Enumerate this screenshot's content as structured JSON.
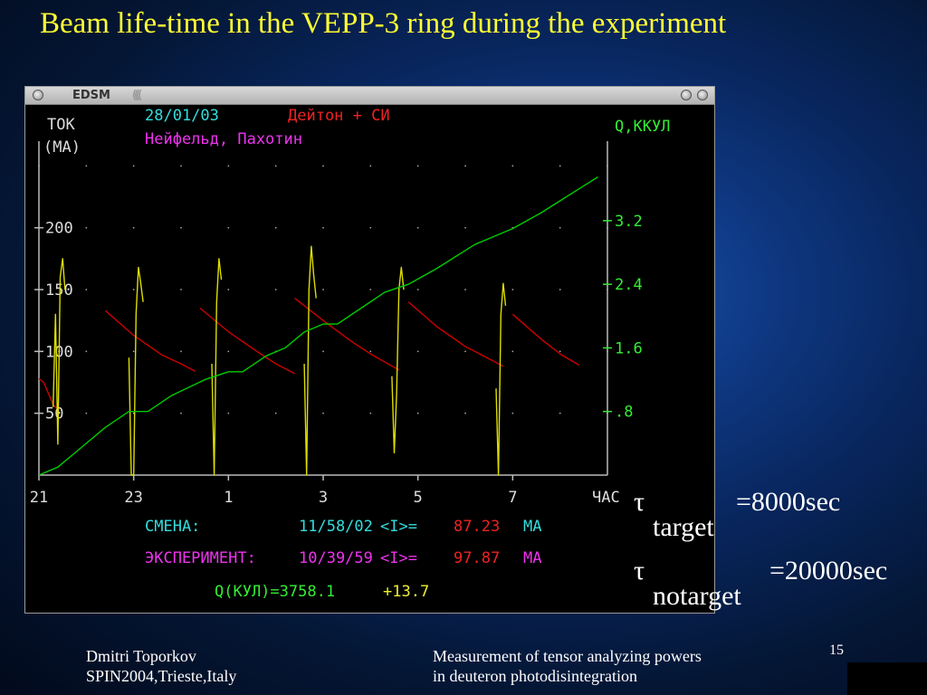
{
  "slide": {
    "title": "Beam life-time in the VEPP-3 ring during the experiment",
    "page_number": "15",
    "footer_left": [
      "Dmitri Toporkov",
      "SPIN2004,Trieste,Italy"
    ],
    "footer_right": [
      "Measurement of tensor analyzing powers",
      "in deuteron photodisintegration"
    ]
  },
  "window": {
    "title": "EDSM"
  },
  "formulas": [
    {
      "symbol": "τ",
      "subscript": "target",
      "value": "=8000sec"
    },
    {
      "symbol": "τ",
      "subscript": "notarget",
      "value": "=20000sec"
    }
  ],
  "chart_data": {
    "type": "line",
    "header": {
      "date": "28/01/03",
      "beam": "Дейтон + СИ",
      "operators": "Нейфельд, Пахотин"
    },
    "left_axis": {
      "label_line1": "ТОК",
      "label_line2": "(МА)",
      "ticks": [
        "50",
        "100",
        "150",
        "200"
      ],
      "tick_values": [
        50,
        100,
        150,
        200
      ],
      "range": [
        0,
        270
      ]
    },
    "right_axis": {
      "label": "Q,ККУЛ",
      "ticks": [
        ".8",
        "1.6",
        "2.4",
        "3.2"
      ],
      "tick_values": [
        0.8,
        1.6,
        2.4,
        3.2
      ],
      "range": [
        0,
        4.2
      ]
    },
    "x_axis": {
      "label": "ЧАС",
      "ticks": [
        "21",
        "23",
        "1",
        "3",
        "5",
        "7"
      ],
      "tick_positions": [
        21,
        23,
        25,
        27,
        29,
        31
      ],
      "range": [
        21,
        33
      ]
    },
    "grid": "dotted",
    "series": [
      {
        "color": "#cc0000",
        "axis": "left",
        "segments": [
          [
            [
              21.0,
              78
            ],
            [
              21.1,
              75
            ],
            [
              21.2,
              66
            ],
            [
              21.3,
              57
            ],
            [
              21.4,
              53
            ]
          ],
          [
            [
              22.4,
              133
            ],
            [
              23.0,
              113
            ],
            [
              23.6,
              97
            ],
            [
              24.0,
              90
            ],
            [
              24.3,
              84
            ]
          ],
          [
            [
              24.4,
              135
            ],
            [
              25.0,
              116
            ],
            [
              25.6,
              100
            ],
            [
              26.0,
              90
            ],
            [
              26.4,
              82
            ]
          ],
          [
            [
              26.4,
              143
            ],
            [
              27.0,
              125
            ],
            [
              27.6,
              108
            ],
            [
              28.0,
              98
            ],
            [
              28.6,
              85
            ]
          ],
          [
            [
              28.8,
              140
            ],
            [
              29.4,
              120
            ],
            [
              30.0,
              104
            ],
            [
              30.4,
              96
            ],
            [
              30.8,
              88
            ]
          ],
          [
            [
              31.0,
              130
            ],
            [
              31.6,
              110
            ],
            [
              32.0,
              98
            ],
            [
              32.4,
              89
            ]
          ]
        ]
      },
      {
        "color": "#dddd00",
        "axis": "left",
        "segments": [
          [
            [
              21.3,
              55
            ],
            [
              21.35,
              130
            ],
            [
              21.4,
              25
            ],
            [
              21.45,
              160
            ],
            [
              21.5,
              175
            ],
            [
              21.55,
              150
            ]
          ],
          [
            [
              22.9,
              95
            ],
            [
              22.95,
              0
            ],
            [
              23.0,
              0
            ],
            [
              23.05,
              130
            ],
            [
              23.1,
              168
            ],
            [
              23.15,
              155
            ],
            [
              23.2,
              140
            ]
          ],
          [
            [
              24.65,
              90
            ],
            [
              24.7,
              0
            ],
            [
              24.75,
              140
            ],
            [
              24.8,
              175
            ],
            [
              24.85,
              158
            ]
          ],
          [
            [
              26.6,
              90
            ],
            [
              26.65,
              0
            ],
            [
              26.7,
              150
            ],
            [
              26.75,
              185
            ],
            [
              26.8,
              162
            ],
            [
              26.85,
              143
            ]
          ],
          [
            [
              28.45,
              80
            ],
            [
              28.5,
              18
            ],
            [
              28.55,
              65
            ],
            [
              28.6,
              150
            ],
            [
              28.65,
              168
            ],
            [
              28.7,
              150
            ]
          ],
          [
            [
              30.65,
              70
            ],
            [
              30.7,
              0
            ],
            [
              30.75,
              130
            ],
            [
              30.8,
              155
            ],
            [
              30.85,
              137
            ]
          ]
        ]
      },
      {
        "color": "#00cc00",
        "axis": "right",
        "points": [
          [
            21.0,
            0.0
          ],
          [
            21.4,
            0.1
          ],
          [
            21.8,
            0.3
          ],
          [
            22.4,
            0.6
          ],
          [
            22.9,
            0.8
          ],
          [
            23.3,
            0.8
          ],
          [
            23.8,
            1.0
          ],
          [
            24.5,
            1.2
          ],
          [
            25.0,
            1.3
          ],
          [
            25.3,
            1.3
          ],
          [
            25.8,
            1.5
          ],
          [
            26.2,
            1.6
          ],
          [
            26.6,
            1.8
          ],
          [
            27.0,
            1.9
          ],
          [
            27.3,
            1.9
          ],
          [
            27.8,
            2.1
          ],
          [
            28.3,
            2.3
          ],
          [
            28.8,
            2.4
          ],
          [
            29.4,
            2.6
          ],
          [
            29.8,
            2.75
          ],
          [
            30.2,
            2.9
          ],
          [
            30.6,
            3.0
          ],
          [
            31.0,
            3.1
          ],
          [
            31.3,
            3.2
          ],
          [
            31.6,
            3.3
          ],
          [
            32.0,
            3.45
          ],
          [
            32.4,
            3.6
          ],
          [
            32.8,
            3.75
          ]
        ]
      }
    ],
    "footer": {
      "shift_label": "СМЕНА:",
      "shift_time": "11/58/02",
      "shift_avg_label": "<I>=",
      "shift_avg_value": "87.23",
      "shift_unit": "МА",
      "exp_label": "ЭКСПЕРИМЕНТ:",
      "exp_time": "10/39/59",
      "exp_avg_label": "<I>=",
      "exp_avg_value": "97.87",
      "exp_unit": "МА",
      "charge_text": "Q(КУЛ)=3758.1",
      "charge_delta": "+13.7"
    }
  }
}
